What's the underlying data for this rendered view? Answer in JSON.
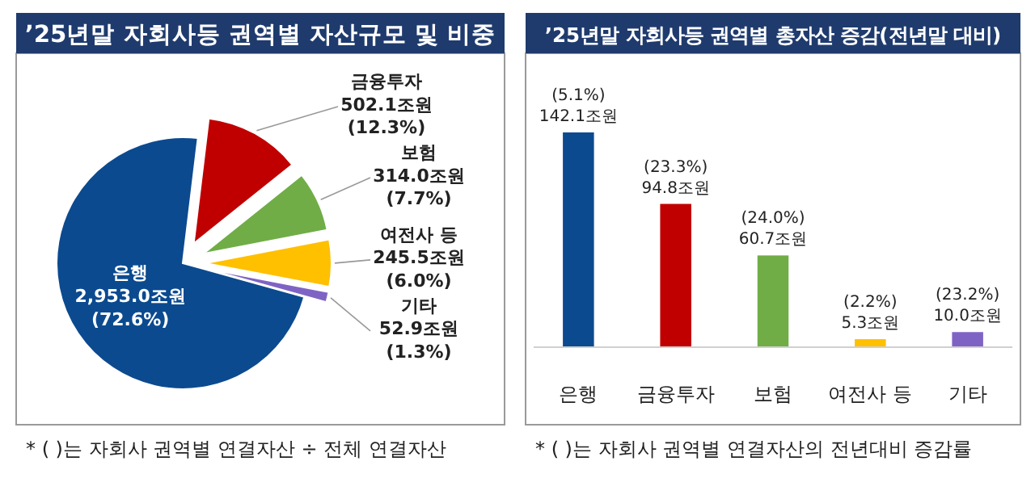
{
  "chart_data": [
    {
      "type": "pie",
      "title": "’25년말 자회사등 권역별 자산규모 및 비중",
      "categories": [
        "은행",
        "금융투자",
        "보험",
        "여전사 등",
        "기타"
      ],
      "values": [
        2953.0,
        502.1,
        314.0,
        245.5,
        52.9
      ],
      "colors": [
        "#0b4a8f",
        "#c00000",
        "#70ad47",
        "#ffc000",
        "#7f63c4"
      ],
      "value_labels": [
        "2,953.0조원\n(72.6%)",
        "502.1조원\n(12.3%)",
        "314.0조원\n(7.7%)",
        "245.5조원\n(6.0%)",
        "52.9조원\n(1.3%)"
      ],
      "annotations": [
        "* (   )는 자회사 권역별 연결자산 ÷ 전체 연결자산"
      ]
    },
    {
      "type": "bar",
      "title": "’25년말 자회사등 권역별 총자산 증감(전년말 대비)",
      "categories": [
        "은행",
        "금융투자",
        "보험",
        "여전사 등",
        "기타"
      ],
      "values": [
        142.1,
        94.8,
        60.7,
        5.3,
        10.0
      ],
      "colors": [
        "#0b4a8f",
        "#c00000",
        "#70ad47",
        "#ffc000",
        "#7f63c4"
      ],
      "value_labels": [
        "(5.1%)\n142.1조원",
        "(23.3%)\n94.8조원",
        "(24.0%)\n60.7조원",
        "(2.2%)\n5.3조원",
        "(23.2%)\n10.0조원"
      ],
      "annotations": [
        "* (   )는 자회사 권역별 연결자산의 전년대비 증감률"
      ]
    }
  ]
}
